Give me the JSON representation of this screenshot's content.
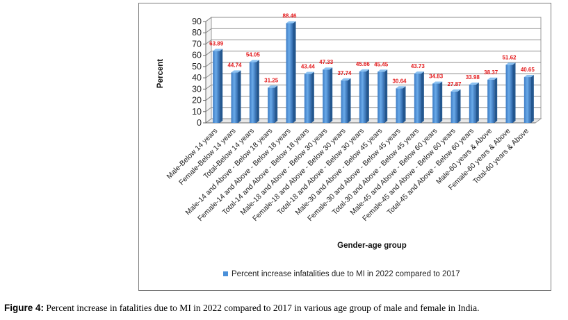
{
  "caption": {
    "label": "Figure 4:",
    "text": " Percent increase in fatalities due to MI in 2022 compared to 2017 in various age group of male and female in India."
  },
  "chart_data": {
    "type": "bar",
    "title": "",
    "xlabel": "Gender-age group",
    "ylabel": "Percent",
    "ylim": [
      0,
      90
    ],
    "yticks": [
      0,
      10,
      20,
      30,
      40,
      50,
      60,
      70,
      80,
      90
    ],
    "grid": true,
    "legend_position": "bottom",
    "bar_color": "#4a90d9",
    "label_color": "#e41a1c",
    "categories": [
      "Male-Below 14 years",
      "Female-Below 14 years",
      "Total-Below 14 years",
      "Male-14 and Above - Below 18 years",
      "Female-14 and Above - Below 18 years",
      "Total-14 and Above - Below 18 years",
      "Male-18 and Above - Below 30 years",
      "Female-18 and Above - Below 30 years",
      "Total-18 and Above - Below 30 years",
      "Male-30 and Above - Below 45 years",
      "Female-30 and Above - Below 45 years",
      "Total-30 and Above - Below 45 years",
      "Male-45 and Above - Below 60 years",
      "Female-45 and Above - Below 60 years",
      "Total-45 and Above - Below 60 years",
      "Male-60 years & Above",
      "Female-60 years & Above",
      "Total-60 years & Above"
    ],
    "series": [
      {
        "name": "Percent increase infatalities due to MI in 2022 compared to 2017",
        "values": [
          63.89,
          44.74,
          54.05,
          31.25,
          88.46,
          43.44,
          47.33,
          37.74,
          45.66,
          45.45,
          30.64,
          43.73,
          34.83,
          27.87,
          33.98,
          38.37,
          51.62,
          40.65
        ]
      }
    ]
  }
}
